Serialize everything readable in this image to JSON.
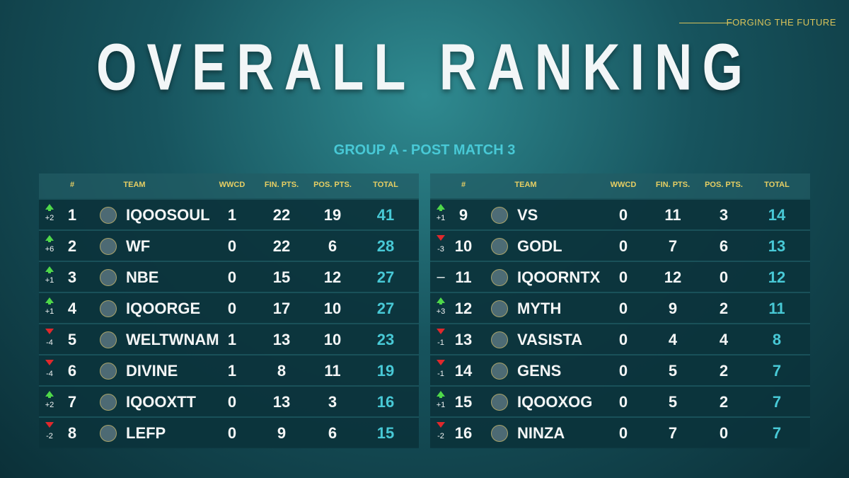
{
  "header": {
    "tagline": "FORGING THE FUTURE",
    "title": "OVERALL RANKING",
    "subtitle": "GROUP A - POST MATCH 3"
  },
  "tables": [
    {
      "columns": [
        "#",
        "TEAM",
        "WWCD",
        "FIN. PTS.",
        "POS. PTS.",
        "TOTAL"
      ],
      "rows": [
        {
          "change": "+2",
          "rank": 1,
          "team": "IQOOSOUL",
          "wwcd": 1,
          "fin_pts": 22,
          "pos_pts": 19,
          "total": 41
        },
        {
          "change": "+6",
          "rank": 2,
          "team": "WF",
          "wwcd": 0,
          "fin_pts": 22,
          "pos_pts": 6,
          "total": 28
        },
        {
          "change": "+1",
          "rank": 3,
          "team": "NBE",
          "wwcd": 0,
          "fin_pts": 15,
          "pos_pts": 12,
          "total": 27
        },
        {
          "change": "+1",
          "rank": 4,
          "team": "IQOORGE",
          "wwcd": 0,
          "fin_pts": 17,
          "pos_pts": 10,
          "total": 27
        },
        {
          "change": "-4",
          "rank": 5,
          "team": "WELTWNAM",
          "wwcd": 1,
          "fin_pts": 13,
          "pos_pts": 10,
          "total": 23
        },
        {
          "change": "-4",
          "rank": 6,
          "team": "DIVINE",
          "wwcd": 1,
          "fin_pts": 8,
          "pos_pts": 11,
          "total": 19
        },
        {
          "change": "+2",
          "rank": 7,
          "team": "IQOOXTT",
          "wwcd": 0,
          "fin_pts": 13,
          "pos_pts": 3,
          "total": 16
        },
        {
          "change": "-2",
          "rank": 8,
          "team": "LEFP",
          "wwcd": 0,
          "fin_pts": 9,
          "pos_pts": 6,
          "total": 15
        }
      ]
    },
    {
      "columns": [
        "#",
        "TEAM",
        "WWCD",
        "FIN. PTS.",
        "POS. PTS.",
        "TOTAL"
      ],
      "rows": [
        {
          "change": "+1",
          "rank": 9,
          "team": "VS",
          "wwcd": 0,
          "fin_pts": 11,
          "pos_pts": 3,
          "total": 14
        },
        {
          "change": "-3",
          "rank": 10,
          "team": "GODL",
          "wwcd": 0,
          "fin_pts": 7,
          "pos_pts": 6,
          "total": 13
        },
        {
          "change": "–",
          "rank": 11,
          "team": "IQOORNTX",
          "wwcd": 0,
          "fin_pts": 12,
          "pos_pts": 0,
          "total": 12
        },
        {
          "change": "+3",
          "rank": 12,
          "team": "MYTH",
          "wwcd": 0,
          "fin_pts": 9,
          "pos_pts": 2,
          "total": 11
        },
        {
          "change": "-1",
          "rank": 13,
          "team": "VASISTA",
          "wwcd": 0,
          "fin_pts": 4,
          "pos_pts": 4,
          "total": 8
        },
        {
          "change": "-1",
          "rank": 14,
          "team": "GENS",
          "wwcd": 0,
          "fin_pts": 5,
          "pos_pts": 2,
          "total": 7
        },
        {
          "change": "+1",
          "rank": 15,
          "team": "IQOOXOG",
          "wwcd": 0,
          "fin_pts": 5,
          "pos_pts": 2,
          "total": 7
        },
        {
          "change": "-2",
          "rank": 16,
          "team": "NINZA",
          "wwcd": 0,
          "fin_pts": 7,
          "pos_pts": 0,
          "total": 7
        }
      ]
    }
  ]
}
